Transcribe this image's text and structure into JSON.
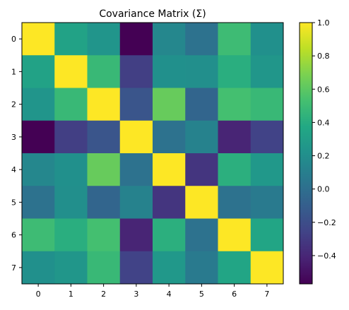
{
  "chart_data": {
    "type": "heatmap",
    "title": "Covariance Matrix (Σ)",
    "xlabel": "",
    "ylabel": "",
    "x_tick_labels": [
      "0",
      "1",
      "2",
      "3",
      "4",
      "5",
      "6",
      "7"
    ],
    "y_tick_labels": [
      "0",
      "1",
      "2",
      "3",
      "4",
      "5",
      "6",
      "7"
    ],
    "values": [
      [
        1.0,
        0.33,
        0.24,
        -0.57,
        0.15,
        0.02,
        0.5,
        0.21
      ],
      [
        0.33,
        1.0,
        0.48,
        -0.28,
        0.21,
        0.2,
        0.41,
        0.25
      ],
      [
        0.24,
        0.48,
        1.0,
        -0.16,
        0.63,
        -0.06,
        0.53,
        0.48
      ],
      [
        -0.57,
        -0.28,
        -0.16,
        1.0,
        0.02,
        0.12,
        -0.41,
        -0.26
      ],
      [
        0.15,
        0.21,
        0.63,
        0.02,
        1.0,
        -0.33,
        0.42,
        0.26
      ],
      [
        0.02,
        0.2,
        -0.06,
        0.12,
        -0.33,
        1.0,
        0.02,
        0.07
      ],
      [
        0.5,
        0.41,
        0.53,
        -0.41,
        0.42,
        0.02,
        1.0,
        0.35
      ],
      [
        0.21,
        0.25,
        0.48,
        -0.26,
        0.26,
        0.07,
        0.35,
        1.0
      ]
    ],
    "vmin": -0.57,
    "vmax": 1.0,
    "colormap": "viridis",
    "colorbar_ticks": [
      -0.4,
      -0.2,
      0.0,
      0.2,
      0.4,
      0.6,
      0.8,
      1.0
    ],
    "colorbar_tick_labels": [
      "−0.4",
      "−0.2",
      "0.0",
      "0.2",
      "0.4",
      "0.6",
      "0.8",
      "1.0"
    ],
    "grid": false,
    "legend": "colorbar-right"
  }
}
